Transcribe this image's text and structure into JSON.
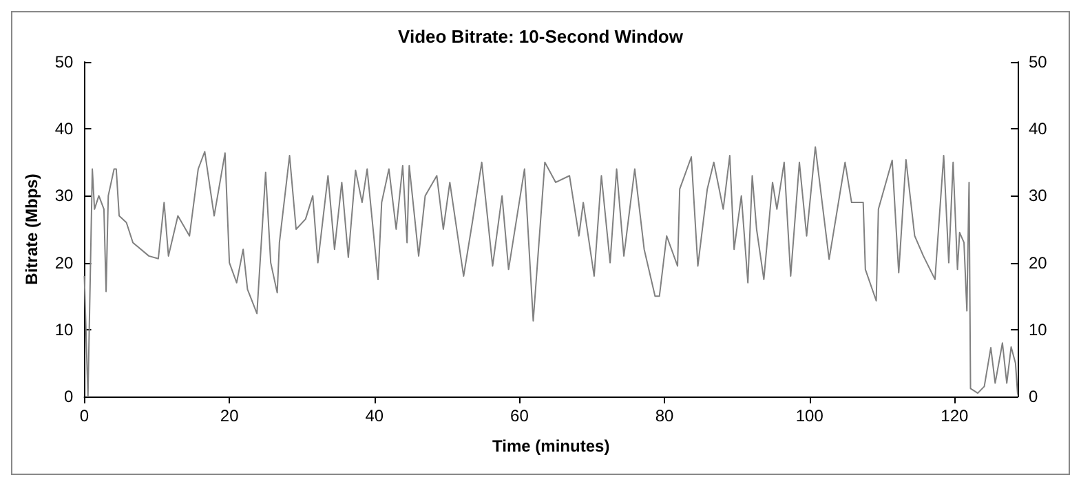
{
  "chart_data": {
    "type": "line",
    "title": "Video Bitrate: 10-Second Window",
    "xlabel": "Time (minutes)",
    "ylabel": "Bitrate (Mbps)",
    "xlim": [
      0,
      128.7
    ],
    "xticks": [
      0,
      20,
      40,
      60,
      80,
      100,
      120
    ],
    "ylim": [
      0,
      50
    ],
    "yticks": [
      0,
      10,
      20,
      30,
      40,
      50
    ],
    "y2lim": [
      0,
      50
    ],
    "y2ticks": [
      0,
      10,
      20,
      30,
      40,
      50
    ],
    "grid": false,
    "marker": "none",
    "line_style": "solid",
    "series": [
      {
        "color": "#808080",
        "x": [
          0,
          0.5,
          1.1,
          1.4,
          2,
          2.7,
          3,
          3.3,
          4.1,
          4.4,
          4.8,
          5.8,
          6.7,
          8.9,
          10.2,
          11,
          11.6,
          12.9,
          14.5,
          15.7,
          16.6,
          17.9,
          19.4,
          20,
          21,
          21.9,
          22.5,
          23.8,
          25,
          25.7,
          26.6,
          26.9,
          28.3,
          29.2,
          30.5,
          31.5,
          32.2,
          33.6,
          34.5,
          35.5,
          36.4,
          37.4,
          38.3,
          39,
          40,
          40.5,
          41,
          42,
          43,
          43.9,
          44.5,
          44.8,
          46.1,
          47,
          48.6,
          49.5,
          50.4,
          52.3,
          53.5,
          54.8,
          56.3,
          57.6,
          58.5,
          60.7,
          61.9,
          63.5,
          65,
          66.9,
          68.2,
          68.8,
          70.3,
          71.3,
          72.5,
          73.4,
          74.4,
          75.9,
          77.2,
          78.7,
          79.3,
          80.3,
          81.8,
          82.1,
          83.7,
          84.6,
          85.9,
          86.8,
          88.1,
          89,
          89.6,
          90.6,
          91.5,
          92.1,
          92.7,
          93.7,
          94.9,
          95.5,
          96.5,
          97.4,
          98.6,
          99.6,
          100.8,
          102.7,
          104.9,
          105.8,
          107.4,
          107.7,
          109.2,
          109.5,
          111.4,
          112.3,
          113.3,
          114.5,
          115.7,
          117.3,
          118.5,
          119.2,
          119.8,
          120.4,
          120.7,
          121.3,
          121.7,
          122,
          122.2,
          123.2,
          124.1,
          125,
          125.6,
          126.6,
          127.2,
          127.8,
          128.4,
          128.7
        ],
        "values": [
          18,
          0,
          34,
          28,
          30,
          28,
          15.7,
          30,
          34,
          34,
          27,
          26,
          23,
          21,
          20.6,
          29,
          21,
          27,
          24,
          34,
          36.6,
          27,
          36.4,
          20,
          17,
          22,
          16,
          12.4,
          33.5,
          20,
          15.5,
          23,
          36,
          25,
          26.5,
          30,
          20,
          33,
          22,
          32,
          20.8,
          33.8,
          29,
          34,
          23,
          17.5,
          29,
          34,
          25,
          34.5,
          23,
          34.5,
          21,
          30,
          33,
          25,
          32,
          18,
          26,
          35,
          19.5,
          30,
          19,
          34,
          11.3,
          35,
          32,
          33,
          24,
          29,
          18,
          33,
          20,
          34,
          21,
          34,
          22,
          15,
          15,
          24,
          19.5,
          31,
          35.8,
          19.5,
          31,
          35,
          28,
          36,
          22,
          30,
          17,
          33,
          25,
          17.5,
          32,
          28,
          35,
          18,
          35,
          24,
          37.3,
          20.5,
          35,
          29,
          29,
          19,
          14.3,
          28,
          35.3,
          18.5,
          35.4,
          24,
          21,
          17.5,
          36,
          20,
          35,
          19,
          24.5,
          23,
          12.8,
          32,
          1.2,
          0.5,
          1.5,
          7.3,
          2,
          8,
          2,
          7.4,
          5,
          0.3
        ]
      }
    ]
  }
}
